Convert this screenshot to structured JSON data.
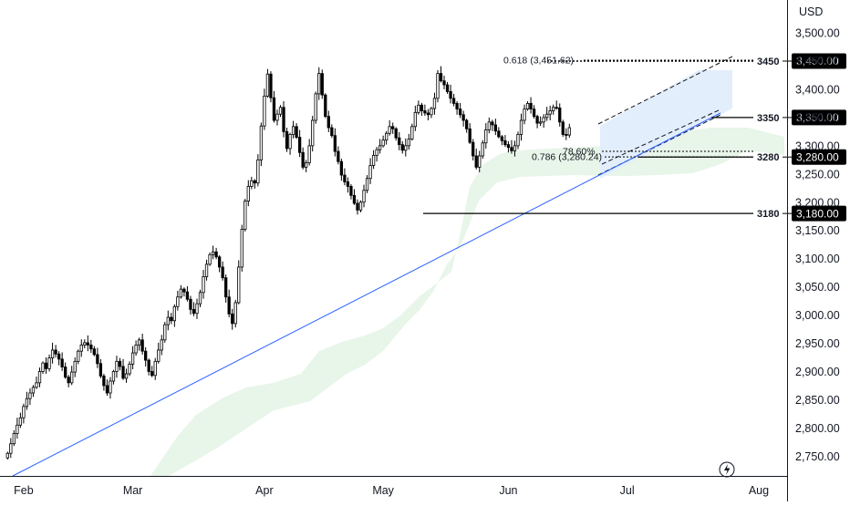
{
  "chart_data": {
    "type": "candlestick",
    "title": "",
    "currency_label": "USD",
    "ylim": [
      2715,
      3555
    ],
    "y_ticks": [
      {
        "value": 3500,
        "label": "3,500.00"
      },
      {
        "value": 3450,
        "label": "3,450.00"
      },
      {
        "value": 3400,
        "label": "3,400.00"
      },
      {
        "value": 3350,
        "label": "3,350.00"
      },
      {
        "value": 3300,
        "label": "3,300.00"
      },
      {
        "value": 3250,
        "label": "3,250.00"
      },
      {
        "value": 3200,
        "label": "3,200.00"
      },
      {
        "value": 3150,
        "label": "3,150.00"
      },
      {
        "value": 3100,
        "label": "3,100.00"
      },
      {
        "value": 3050,
        "label": "3,050.00"
      },
      {
        "value": 3000,
        "label": "3,000.00"
      },
      {
        "value": 2950,
        "label": "2,950.00"
      },
      {
        "value": 2900,
        "label": "2,900.00"
      },
      {
        "value": 2850,
        "label": "2,850.00"
      },
      {
        "value": 2800,
        "label": "2,800.00"
      },
      {
        "value": 2750,
        "label": "2,750.00"
      }
    ],
    "x_ticks": [
      {
        "label": "Feb",
        "bar": 5
      },
      {
        "label": "Mar",
        "bar": 39
      },
      {
        "label": "Apr",
        "bar": 80
      },
      {
        "label": "May",
        "bar": 117
      },
      {
        "label": "Jun",
        "bar": 156
      },
      {
        "label": "Jul",
        "bar": 193
      },
      {
        "label": "Aug",
        "bar": 234
      }
    ],
    "grid": false,
    "closes": [
      2755,
      2772,
      2790,
      2805,
      2818,
      2838,
      2852,
      2862,
      2872,
      2880,
      2900,
      2915,
      2905,
      2924,
      2938,
      2931,
      2922,
      2908,
      2890,
      2880,
      2899,
      2918,
      2936,
      2947,
      2951,
      2947,
      2940,
      2930,
      2914,
      2892,
      2875,
      2862,
      2883,
      2900,
      2918,
      2909,
      2888,
      2896,
      2913,
      2933,
      2947,
      2956,
      2936,
      2920,
      2900,
      2893,
      2918,
      2938,
      2956,
      2983,
      2996,
      2990,
      3015,
      3032,
      3046,
      3041,
      3028,
      3010,
      3003,
      3020,
      3040,
      3068,
      3090,
      3107,
      3112,
      3103,
      3085,
      3066,
      3032,
      3002,
      2985,
      3022,
      3085,
      3152,
      3202,
      3228,
      3238,
      3234,
      3275,
      3335,
      3388,
      3427,
      3385,
      3345,
      3356,
      3368,
      3325,
      3295,
      3320,
      3334,
      3315,
      3288,
      3262,
      3270,
      3300,
      3345,
      3392,
      3428,
      3390,
      3352,
      3332,
      3318,
      3290,
      3272,
      3248,
      3236,
      3228,
      3212,
      3198,
      3186,
      3200,
      3221,
      3242,
      3265,
      3283,
      3293,
      3300,
      3310,
      3322,
      3334,
      3330,
      3314,
      3302,
      3292,
      3300,
      3312,
      3334,
      3359,
      3372,
      3362,
      3358,
      3355,
      3366,
      3384,
      3428,
      3415,
      3408,
      3396,
      3384,
      3375,
      3365,
      3355,
      3345,
      3330,
      3306,
      3282,
      3262,
      3282,
      3305,
      3328,
      3342,
      3337,
      3326,
      3316,
      3309,
      3302,
      3297,
      3291,
      3300,
      3320,
      3345,
      3365,
      3375,
      3365,
      3352,
      3340,
      3342,
      3350,
      3356,
      3362,
      3368,
      3367,
      3342,
      3320,
      3319,
      3332
    ],
    "fib_levels": [
      {
        "label": "0.618 (3,451.62)",
        "value": 3451.62
      },
      {
        "label": "0.786 (3,280.24)",
        "value": 3280.24
      },
      {
        "label": "78.60%",
        "value": 3290
      }
    ],
    "levels": [
      {
        "label": "3450",
        "badge": "3,450.00",
        "value": 3450
      },
      {
        "label": "3350",
        "badge": "3,350.00",
        "value": 3350
      },
      {
        "label": "3280",
        "badge": "3,280.00",
        "value": 3280
      },
      {
        "label": "3180",
        "badge": "3,180.00",
        "value": 3180
      }
    ],
    "colors": {
      "up_candle": "#ffffff",
      "down_candle": "#000000",
      "candle_outline": "#000000",
      "trendline": "#2962ff",
      "cloud": "#e8f5e9",
      "channel_fill": "#e3eefc",
      "badge_bg": "#000000",
      "axis_line": "#131722"
    }
  }
}
